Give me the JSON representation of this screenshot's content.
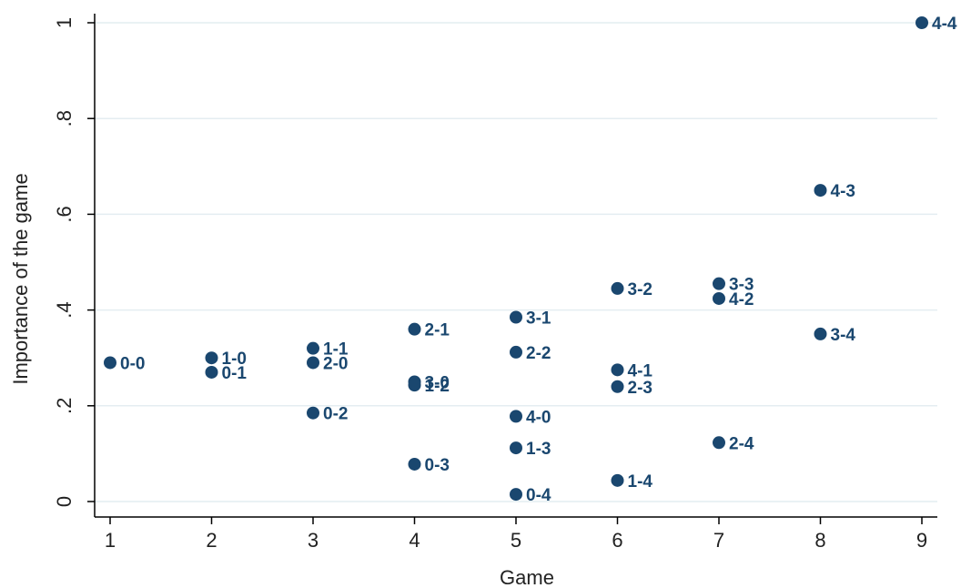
{
  "chart_data": {
    "type": "scatter",
    "xlabel": "Game",
    "ylabel": "Importance of the game",
    "xlim": [
      1,
      9
    ],
    "ylim": [
      0,
      1
    ],
    "x_ticks": [
      1,
      2,
      3,
      4,
      5,
      6,
      7,
      8,
      9
    ],
    "x_tick_labels": [
      "1",
      "2",
      "3",
      "4",
      "5",
      "6",
      "7",
      "8",
      "9"
    ],
    "y_ticks": [
      0,
      0.2,
      0.4,
      0.6,
      0.8,
      1
    ],
    "y_tick_labels": [
      "0",
      ".2",
      ".4",
      ".6",
      ".8",
      "1"
    ],
    "grid": true,
    "marker_color": "#1a476f",
    "points": [
      {
        "x": 1,
        "y": 0.29,
        "label": "0-0"
      },
      {
        "x": 2,
        "y": 0.3,
        "label": "1-0"
      },
      {
        "x": 2,
        "y": 0.27,
        "label": "0-1"
      },
      {
        "x": 3,
        "y": 0.32,
        "label": "1-1"
      },
      {
        "x": 3,
        "y": 0.29,
        "label": "2-0"
      },
      {
        "x": 3,
        "y": 0.185,
        "label": "0-2"
      },
      {
        "x": 4,
        "y": 0.36,
        "label": "2-1"
      },
      {
        "x": 4,
        "y": 0.25,
        "label": "3-0"
      },
      {
        "x": 4,
        "y": 0.243,
        "label": "1-2"
      },
      {
        "x": 4,
        "y": 0.078,
        "label": "0-3"
      },
      {
        "x": 5,
        "y": 0.385,
        "label": "3-1"
      },
      {
        "x": 5,
        "y": 0.312,
        "label": "2-2"
      },
      {
        "x": 5,
        "y": 0.178,
        "label": "4-0"
      },
      {
        "x": 5,
        "y": 0.112,
        "label": "1-3"
      },
      {
        "x": 5,
        "y": 0.015,
        "label": "0-4"
      },
      {
        "x": 6,
        "y": 0.445,
        "label": "3-2"
      },
      {
        "x": 6,
        "y": 0.275,
        "label": "4-1"
      },
      {
        "x": 6,
        "y": 0.24,
        "label": "2-3"
      },
      {
        "x": 6,
        "y": 0.044,
        "label": "1-4"
      },
      {
        "x": 7,
        "y": 0.455,
        "label": "3-3"
      },
      {
        "x": 7,
        "y": 0.424,
        "label": "4-2"
      },
      {
        "x": 7,
        "y": 0.123,
        "label": "2-4"
      },
      {
        "x": 8,
        "y": 0.65,
        "label": "4-3"
      },
      {
        "x": 8,
        "y": 0.35,
        "label": "3-4"
      },
      {
        "x": 9,
        "y": 1.0,
        "label": "4-4"
      }
    ]
  }
}
